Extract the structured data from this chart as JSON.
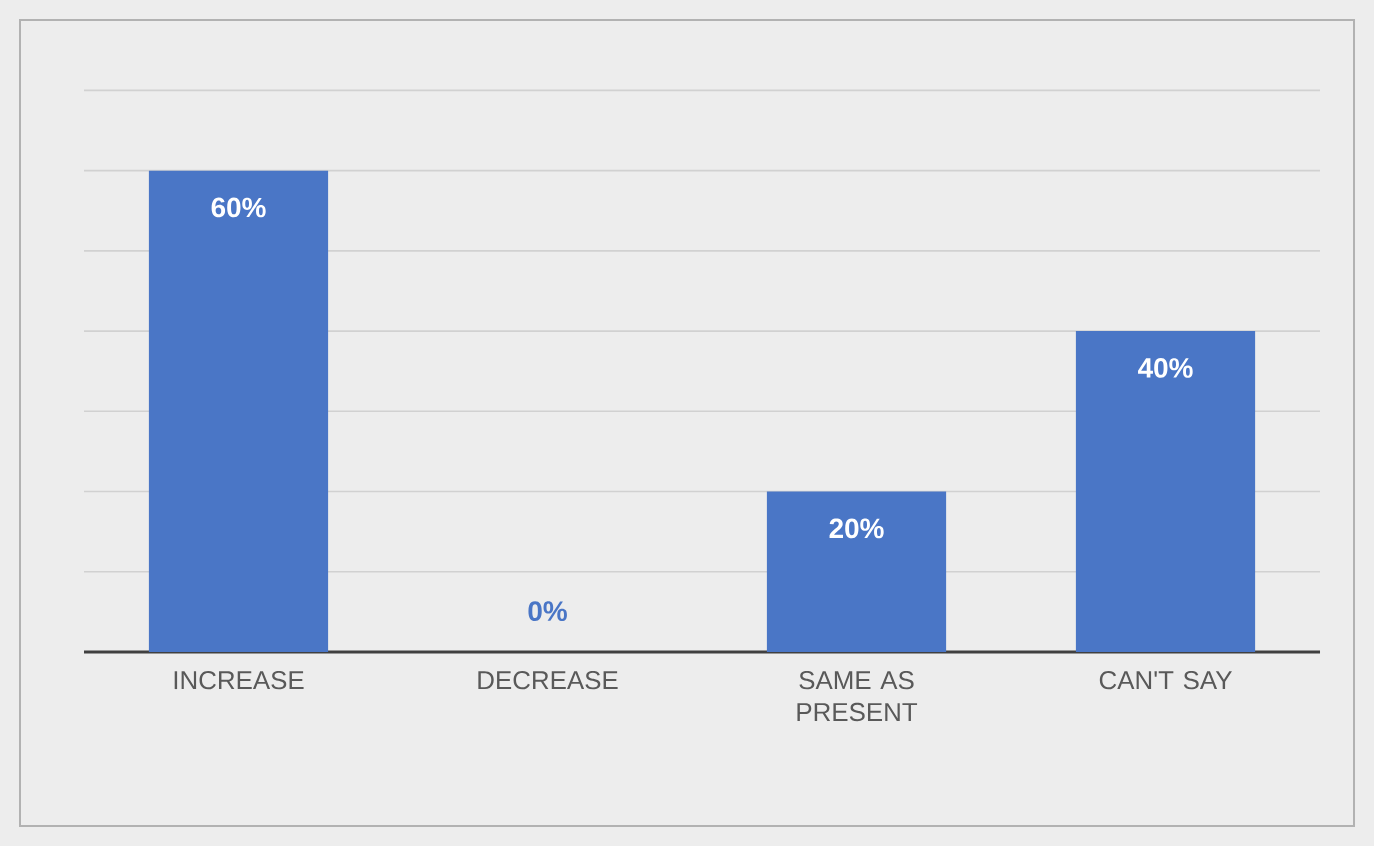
{
  "chart_data": {
    "type": "bar",
    "categories": [
      "INCREASE",
      "DECREASE",
      "SAME AS PRESENT",
      "CAN'T SAY"
    ],
    "values": [
      60,
      0,
      20,
      40
    ],
    "value_labels": [
      "60%",
      "0%",
      "20%",
      "40%"
    ],
    "color": "#4a76c6",
    "grid": "y",
    "tick_labels": "x"
  }
}
